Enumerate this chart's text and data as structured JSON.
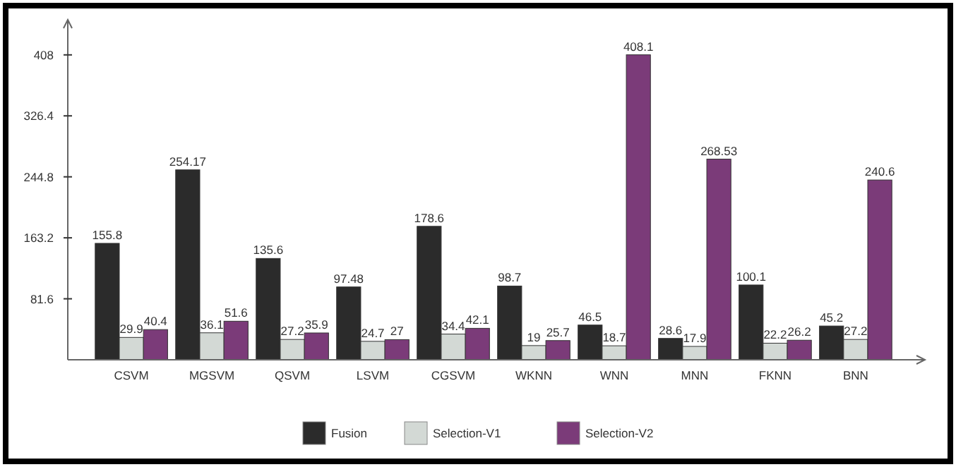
{
  "chart_data": {
    "type": "bar",
    "categories": [
      "CSVM",
      "MGSVM",
      "QSVM",
      "LSVM",
      "CGSVM",
      "WKNN",
      "WNN",
      "MNN",
      "FKNN",
      "BNN"
    ],
    "series": [
      {
        "name": "Fusion",
        "color": "#2b2b2b",
        "values": [
          155.8,
          254.17,
          135.6,
          97.48,
          178.6,
          98.7,
          46.5,
          28.6,
          100.1,
          45.2
        ]
      },
      {
        "name": "Selection-V1",
        "color": "#d3d9d5",
        "values": [
          29.9,
          36.1,
          27.2,
          24.7,
          34.4,
          19,
          18.7,
          17.9,
          22.2,
          27.2
        ]
      },
      {
        "name": "Selection-V2",
        "color": "#7b3b79",
        "values": [
          40.4,
          51.6,
          35.9,
          27,
          42.1,
          25.7,
          408.1,
          268.53,
          26.2,
          240.6
        ]
      }
    ],
    "ylim": [
      0,
      455
    ],
    "yticks": [
      81.6,
      163.2,
      244.8,
      326.4,
      408
    ],
    "grid": false,
    "legend": "bottom",
    "data_labels": true
  }
}
